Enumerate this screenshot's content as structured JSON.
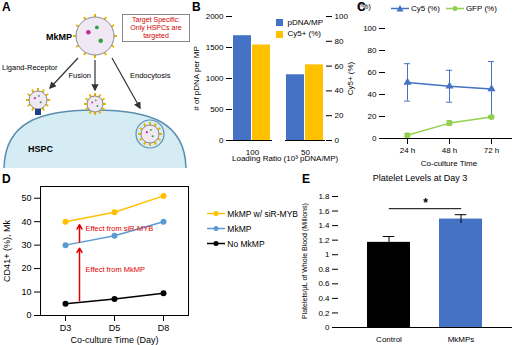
{
  "chart_data": [
    {
      "panel": "A",
      "type": "diagram",
      "particle": "MkMP",
      "note": "Target Specific: Only HSPCs are targeted",
      "pathways": [
        "Ligand-Receptor",
        "Fusion",
        "Endocytosis"
      ],
      "cell": "HSPC"
    },
    {
      "panel": "B",
      "type": "bar",
      "categories": [
        "100",
        "50"
      ],
      "xlabel": "Loading Ratio (10³ pDNA/MP)",
      "ylabel": "# of pDNA per MP",
      "y2label": "Cy5+ (%)",
      "ylim": [
        0,
        2000
      ],
      "yticks": [
        0,
        500,
        1000,
        1500,
        2000
      ],
      "y2lim": [
        0,
        100
      ],
      "y2ticks": [
        0,
        20,
        40,
        60,
        80,
        100
      ],
      "legend": "top-right",
      "series": [
        {
          "name": "pDNA/MP",
          "color": "#4472c4",
          "values": [
            1690,
            1060
          ]
        },
        {
          "name": "Cy5+ (%)",
          "color": "#ffc000",
          "values": [
            77,
            61
          ],
          "axis": "y2"
        }
      ]
    },
    {
      "panel": "C",
      "type": "line",
      "categories": [
        "24 h",
        "48 h",
        "72 h"
      ],
      "xlabel": "Co-culture Time",
      "ylabel": "(%)",
      "ylim": [
        0,
        100
      ],
      "yticks": [
        0,
        20,
        40,
        60,
        80,
        100
      ],
      "legend": "top",
      "series": [
        {
          "name": "Cy5 (%)",
          "color": "#4472c4",
          "marker": "triangle",
          "values": [
            51,
            47.5,
            45
          ],
          "errors": [
            17,
            14.5,
            25
          ]
        },
        {
          "name": "GFP (%)",
          "color": "#92d050",
          "marker": "circle",
          "values": [
            3,
            14,
            19.5
          ],
          "errors": [
            1.5,
            2,
            1
          ]
        }
      ]
    },
    {
      "panel": "D",
      "type": "line",
      "categories": [
        "D3",
        "D5",
        "D8"
      ],
      "xlabel": "Co-culture Time (Day)",
      "ylabel": "CD41+ (%), Mk",
      "ylim": [
        0,
        55
      ],
      "yticks": [
        0,
        10,
        20,
        30,
        40,
        50
      ],
      "legend": "right",
      "series": [
        {
          "name": "MkMP w/ siR-MYB",
          "color": "#ffc000",
          "marker": "circle",
          "values": [
            40,
            44,
            51
          ]
        },
        {
          "name": "MkMP",
          "color": "#5b9bd5",
          "marker": "circle",
          "values": [
            30,
            34,
            40
          ]
        },
        {
          "name": "No MkMP",
          "color": "#000000",
          "marker": "circle",
          "values": [
            5,
            7,
            9.5
          ]
        }
      ],
      "annotations": [
        {
          "text": "Effect from siR-MYB",
          "from": "MkMP",
          "to": "MkMP w/ siR-MYB",
          "color": "#e00000"
        },
        {
          "text": "Effect from MkMP",
          "from": "No MkMP",
          "to": "MkMP",
          "color": "#e00000"
        }
      ]
    },
    {
      "panel": "E",
      "type": "bar",
      "title": "Platelet Levels at Day 3",
      "categories": [
        "Control",
        "MkMPs"
      ],
      "values": [
        1.17,
        1.49
      ],
      "errors": [
        0.08,
        0.06
      ],
      "colors": [
        "#000000",
        "#4472c4"
      ],
      "ylabel": "Platelets/μL of Whole Blood (Millions)",
      "ylim": [
        0,
        1.8
      ],
      "yticks": [
        0,
        0.2,
        0.4,
        0.6,
        0.8,
        1,
        1.2,
        1.4,
        1.6,
        1.8
      ],
      "annotations": [
        {
          "text": "*",
          "between": [
            "Control",
            "MkMPs"
          ]
        }
      ]
    }
  ]
}
